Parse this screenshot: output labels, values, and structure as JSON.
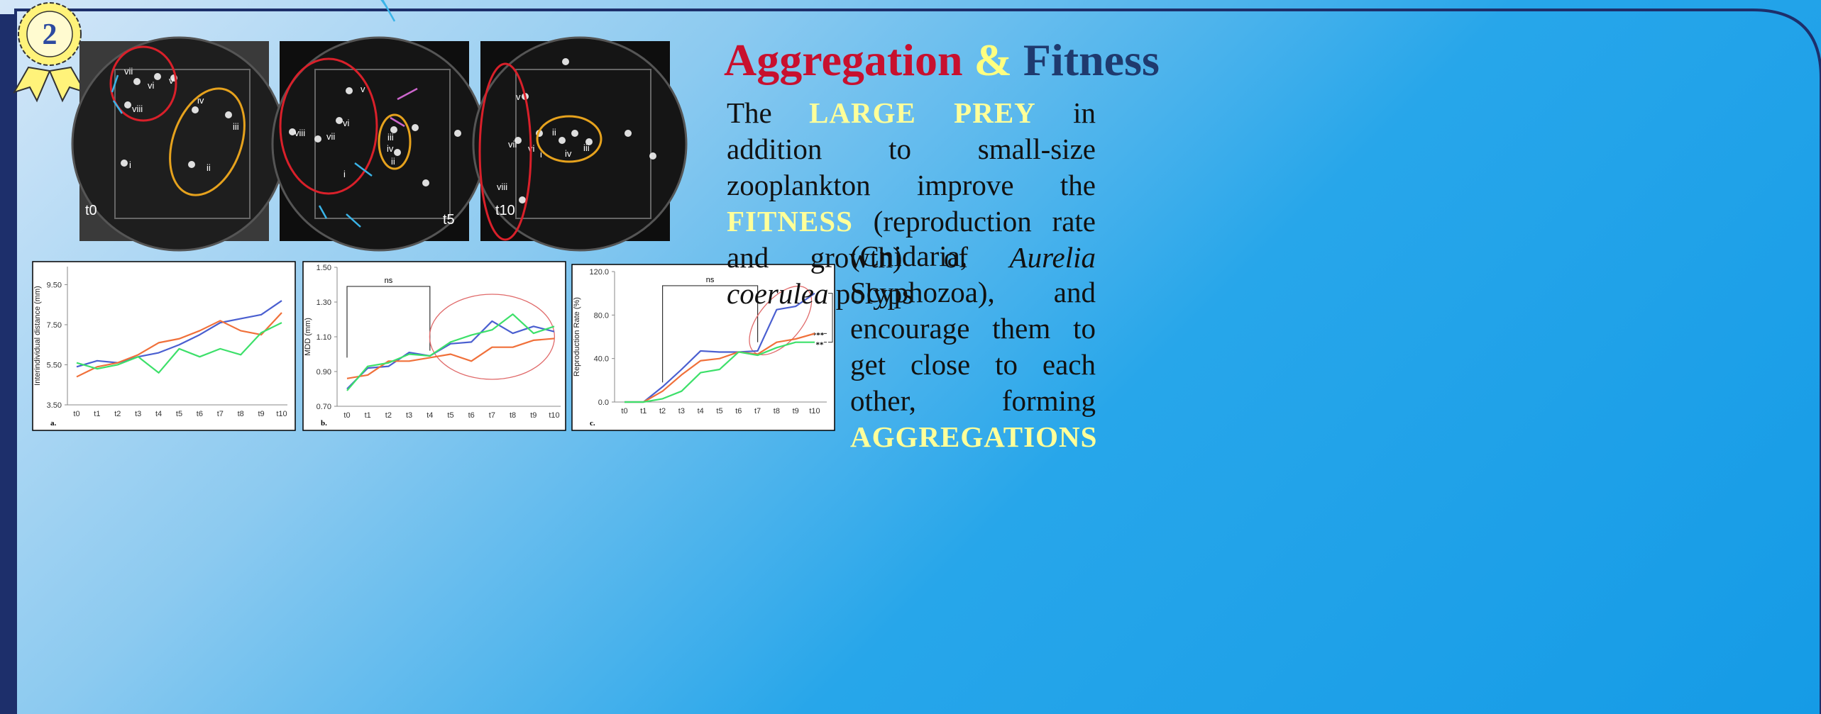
{
  "badge": "2",
  "title": {
    "part1": "Aggregation",
    "part2": "&",
    "part3": "Fitness"
  },
  "paragraph": {
    "lead": [
      {
        "text": "The ",
        "style": "plain"
      },
      {
        "text": "LARGE PREY",
        "style": "highlight"
      },
      {
        "text": " in addition to small-size zooplankton improve the ",
        "style": "plain"
      },
      {
        "text": "FITNESS",
        "style": "highlight"
      },
      {
        "text": " (reproduction rate and growth) of ",
        "style": "plain"
      },
      {
        "text": "Aurelia coerulea",
        "style": "italic"
      },
      {
        "text": " polyps",
        "style": "plain"
      }
    ],
    "tail": [
      {
        "text": "(Cnidaria, Scyphozoa), and encourage them to get close to each other, forming ",
        "style": "plain"
      },
      {
        "text": "AGGREGATIONS",
        "style": "highlight"
      }
    ]
  },
  "photos": [
    {
      "time": "t0",
      "labels": [
        "vii",
        "vi",
        "v",
        "viii",
        "iv",
        "iii",
        "i",
        "ii"
      ]
    },
    {
      "time": "t5",
      "labels": [
        "v",
        "vi",
        "vii",
        "viii",
        "iii",
        "iv",
        "ii",
        "i"
      ]
    },
    {
      "time": "t10",
      "labels": [
        "v",
        "vii",
        "vi",
        "ii",
        "iv",
        "iii",
        "i",
        "viii"
      ]
    }
  ],
  "chart_data": [
    {
      "type": "line",
      "panel": "a.",
      "y_label": "Interindividual distance (mm)",
      "categories": [
        "t0",
        "t1",
        "t2",
        "t3",
        "t4",
        "t5",
        "t6",
        "t7",
        "t8",
        "t9",
        "t10"
      ],
      "ylim": [
        3.5,
        10.4
      ],
      "yticks": [
        {
          "value": 3.5,
          "label": "3.50"
        },
        {
          "value": 5.5,
          "label": "5.50"
        },
        {
          "value": 7.5,
          "label": "7.50"
        },
        {
          "value": 9.5,
          "label": "9.50"
        }
      ],
      "series": [
        {
          "color": "#4a5fd0",
          "values": [
            5.4,
            5.7,
            5.6,
            5.9,
            6.1,
            6.5,
            7.0,
            7.6,
            7.8,
            8.0,
            8.7
          ]
        },
        {
          "color": "#f0703a",
          "values": [
            4.9,
            5.4,
            5.6,
            6.0,
            6.6,
            6.8,
            7.2,
            7.7,
            7.2,
            7.0,
            8.1
          ]
        },
        {
          "color": "#3de06a",
          "values": [
            5.6,
            5.3,
            5.5,
            5.9,
            5.1,
            6.3,
            5.9,
            6.3,
            6.0,
            7.1,
            7.6
          ]
        }
      ]
    },
    {
      "type": "line",
      "panel": "b.",
      "y_label": "MDD (mm)",
      "categories": [
        "t0",
        "t1",
        "t2",
        "t3",
        "t4",
        "t5",
        "t6",
        "t7",
        "t8",
        "t9",
        "t10"
      ],
      "ylim": [
        0.7,
        1.5
      ],
      "yticks": [
        {
          "value": 0.7,
          "label": "0.70"
        },
        {
          "value": 0.9,
          "label": "0.90"
        },
        {
          "value": 1.1,
          "label": "1.10"
        },
        {
          "value": 1.3,
          "label": "1.30"
        },
        {
          "value": 1.5,
          "label": "1.50"
        }
      ],
      "annotation": "ns",
      "series": [
        {
          "color": "#4a5fd0",
          "values": [
            0.8,
            0.92,
            0.93,
            1.01,
            0.99,
            1.06,
            1.07,
            1.19,
            1.12,
            1.16,
            1.13
          ]
        },
        {
          "color": "#f0703a",
          "values": [
            0.86,
            0.88,
            0.96,
            0.96,
            0.98,
            1.0,
            0.96,
            1.04,
            1.04,
            1.08,
            1.09
          ]
        },
        {
          "color": "#3de06a",
          "values": [
            0.79,
            0.93,
            0.95,
            1.0,
            0.99,
            1.07,
            1.11,
            1.14,
            1.23,
            1.12,
            1.16
          ]
        }
      ]
    },
    {
      "type": "line",
      "panel": "c.",
      "y_label": "Reproduction Rate (%)",
      "categories": [
        "t0",
        "t1",
        "t2",
        "t3",
        "t4",
        "t5",
        "t6",
        "t7",
        "t8",
        "t9",
        "t10"
      ],
      "ylim": [
        0,
        120
      ],
      "yticks": [
        {
          "value": 0,
          "label": "0.0"
        },
        {
          "value": 40,
          "label": "40.0"
        },
        {
          "value": 80,
          "label": "80.0"
        },
        {
          "value": 120,
          "label": "120.0"
        }
      ],
      "annotation": "ns",
      "significance": [
        "***",
        "**"
      ],
      "series": [
        {
          "color": "#4a5fd0",
          "values": [
            0,
            0,
            14,
            30,
            47,
            46,
            46,
            47,
            85,
            88,
            100
          ]
        },
        {
          "color": "#f0703a",
          "values": [
            0,
            0,
            10,
            25,
            38,
            40,
            46,
            44,
            55,
            58,
            63
          ]
        },
        {
          "color": "#3de06a",
          "values": [
            0,
            0,
            3,
            10,
            27,
            30,
            46,
            43,
            50,
            55,
            55
          ]
        }
      ]
    }
  ]
}
